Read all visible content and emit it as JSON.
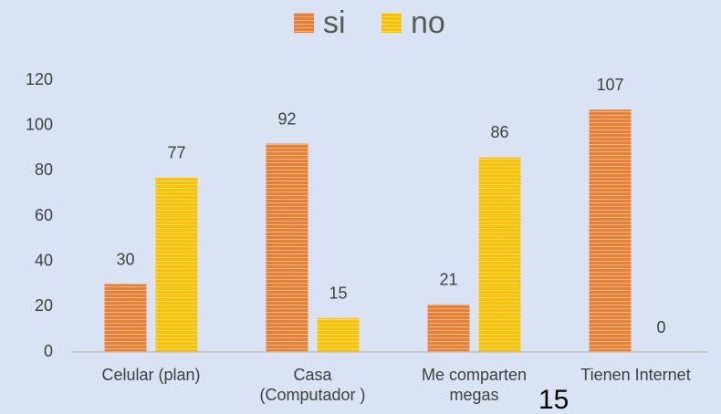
{
  "chart_data": {
    "type": "bar",
    "categories": [
      "Celular (plan)",
      "Casa (Computador )",
      "Me comparten megas",
      "Tienen Internet"
    ],
    "series": [
      {
        "name": "si",
        "color": "#ed7d31",
        "values": [
          30,
          92,
          21,
          107
        ]
      },
      {
        "name": "no",
        "color": "#ffc000",
        "values": [
          77,
          15,
          86,
          0
        ]
      }
    ],
    "ylim": [
      0,
      120
    ],
    "yticks": [
      0,
      20,
      40,
      60,
      80,
      100,
      120
    ],
    "grid": false,
    "legend": "top",
    "annotation": "15"
  }
}
